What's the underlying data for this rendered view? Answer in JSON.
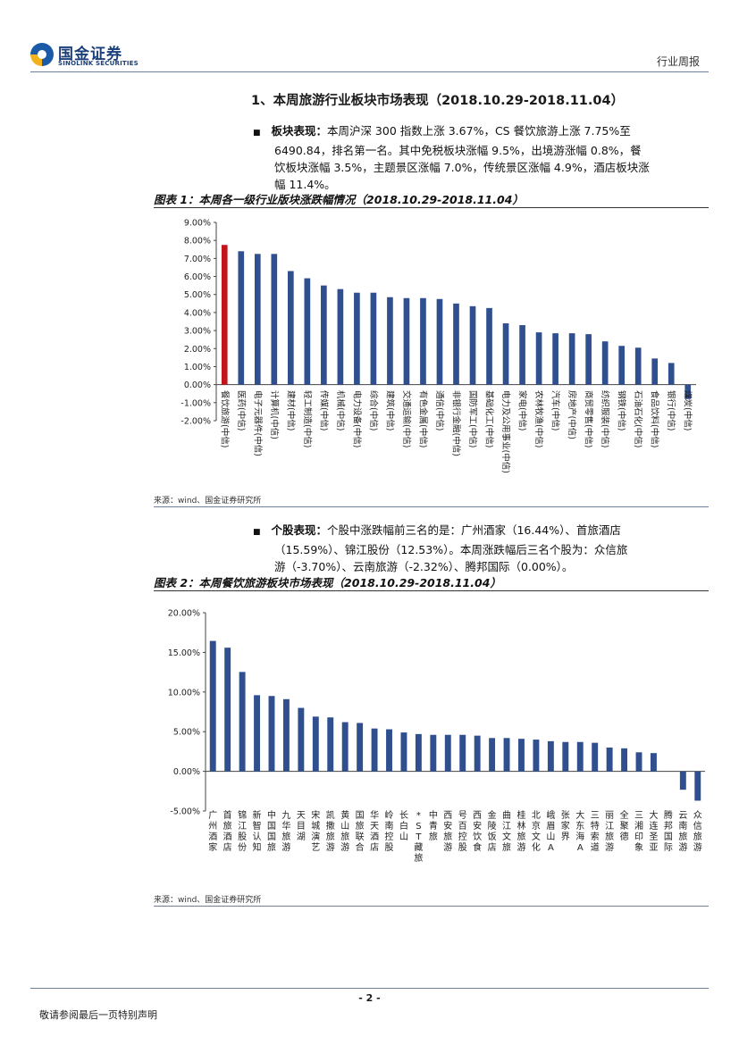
{
  "header": {
    "logo_cn": "国金证券",
    "logo_en": "SINOLINK SECURITIES",
    "report_type": "行业周报"
  },
  "section": {
    "title": "1、本周旅游行业板块市场表现（2018.10.29-2018.11.04）"
  },
  "paragraph1": {
    "label": "板块表现：",
    "lines": [
      "本周沪深 300 指数上涨 3.67%，CS 餐饮旅游上涨 7.75%至",
      "6490.84，排名第一名。其中免税板块涨幅 9.5%，出境游涨幅 0.8%，餐",
      "饮板块涨幅 3.5%，主题景区涨幅 7.0%，传统景区涨幅 4.9%，酒店板块涨",
      "幅 11.4%。"
    ]
  },
  "paragraph2": {
    "label": "个股表现：",
    "lines": [
      "个股中涨跌幅前三名的是：广州酒家（16.44%）、首旅酒店",
      "（15.59%）、锦江股份（12.53%）。本周涨跌幅后三名个股为：众信旅",
      "游（-3.70%）、云南旅游（-2.32%）、腾邦国际（0.00%）。"
    ]
  },
  "chart_data": [
    {
      "type": "bar",
      "title": "图表 1：本周各一级行业版块涨跌幅情况（2018.10.29-2018.11.04）",
      "source": "来源：wind、国金证券研究所",
      "categories": [
        "餐饮旅游(中信)",
        "医药(中信)",
        "电子元器件(中信)",
        "计算机(中信)",
        "建材(中信)",
        "轻工制造(中信)",
        "传媒(中信)",
        "机械(中信)",
        "电力设备(中信)",
        "综合(中信)",
        "建筑(中信)",
        "交通运输(中信)",
        "有色金属(中信)",
        "通信(中信)",
        "非银行金融(中信)",
        "国防军工(中信)",
        "基础化工(中信)",
        "电力及公用事业(中信)",
        "家电(中信)",
        "农林牧渔(中信)",
        "汽车(中信)",
        "房地产(中信)",
        "商贸零售(中信)",
        "纺织服装(中信)",
        "钢铁(中信)",
        "石油石化(中信)",
        "食品饮料(中信)",
        "银行(中信)",
        "煤炭(中信)"
      ],
      "values": [
        7.75,
        7.4,
        7.25,
        7.25,
        6.3,
        5.9,
        5.5,
        5.3,
        5.1,
        5.1,
        4.85,
        4.8,
        4.8,
        4.75,
        4.5,
        4.35,
        4.25,
        3.4,
        3.3,
        2.9,
        2.85,
        2.85,
        2.8,
        2.4,
        2.15,
        2.05,
        1.45,
        1.2,
        -0.8
      ],
      "highlight_index": 0,
      "bar_color": "#2f4f8f",
      "highlight_color": "#c0151b",
      "ylim": [
        -2,
        9
      ],
      "yticks": [
        "-2.00%",
        "-1.00%",
        "0.00%",
        "1.00%",
        "2.00%",
        "3.00%",
        "4.00%",
        "5.00%",
        "6.00%",
        "7.00%",
        "8.00%",
        "9.00%"
      ],
      "grid": false,
      "legend": "none"
    },
    {
      "type": "bar",
      "title": "图表 2：本周餐饮旅游板块市场表现（2018.10.29-2018.11.04）",
      "source": "来源：wind、国金证券研究所",
      "categories": [
        "广州酒家",
        "首旅酒店",
        "锦江股份",
        "新智认知",
        "中国国旅",
        "九华旅游",
        "天目湖",
        "宋城演艺",
        "凯撒旅游",
        "黄山旅游",
        "国旅联合",
        "华天酒店",
        "岭南控股",
        "长白山",
        "西藏旅游",
        "中青旅",
        "西安旅游",
        "号百控股",
        "西安饮食",
        "金陵饭店",
        "曲江文旅",
        "桂林旅游",
        "北京文化",
        "峨眉山A",
        "张家界",
        "大东海A",
        "三特索道",
        "丽江旅游",
        "全聚德",
        "三湘印象",
        "大连圣亚",
        "腾邦国际",
        "云南旅游",
        "众信旅游"
      ],
      "tick_labels": [
        "广州酒家",
        "首旅酒店",
        "锦江股份",
        "新智认知",
        "中国国旅",
        "九华旅游",
        "天目湖",
        "宋城演艺",
        "凯撒旅游",
        "黄山旅游",
        "国旅联合",
        "华天酒店",
        "岭南控股",
        "长白山",
        "*ST藏旅",
        "中青旅",
        "西安旅游",
        "号百控股",
        "西安饮食",
        "金陵饭店",
        "曲江文旅",
        "桂林旅游",
        "北京文化",
        "峨眉山A",
        "张家界",
        "大东海A",
        "三特索道",
        "丽江旅游",
        "全聚德",
        "三湘印象",
        "大连圣亚",
        "腾邦国际",
        "云南旅游",
        "众信旅游"
      ],
      "values": [
        16.44,
        15.59,
        12.53,
        9.6,
        9.5,
        9.1,
        8.0,
        6.9,
        6.8,
        6.2,
        6.1,
        5.4,
        5.3,
        4.9,
        4.7,
        4.6,
        4.6,
        4.6,
        4.5,
        4.2,
        4.2,
        4.1,
        4.0,
        3.8,
        3.7,
        3.7,
        3.6,
        3.0,
        2.9,
        2.4,
        2.3,
        0.0,
        -2.32,
        -3.7
      ],
      "bar_color": "#2f4f8f",
      "ylim": [
        -5,
        20
      ],
      "yticks": [
        "-5.00%",
        "0.00%",
        "5.00%",
        "10.00%",
        "15.00%",
        "20.00%"
      ],
      "grid": false,
      "legend": "none"
    }
  ],
  "footer": {
    "page_number": "- 2 -",
    "disclaimer": "敬请参阅最后一页特别声明"
  }
}
